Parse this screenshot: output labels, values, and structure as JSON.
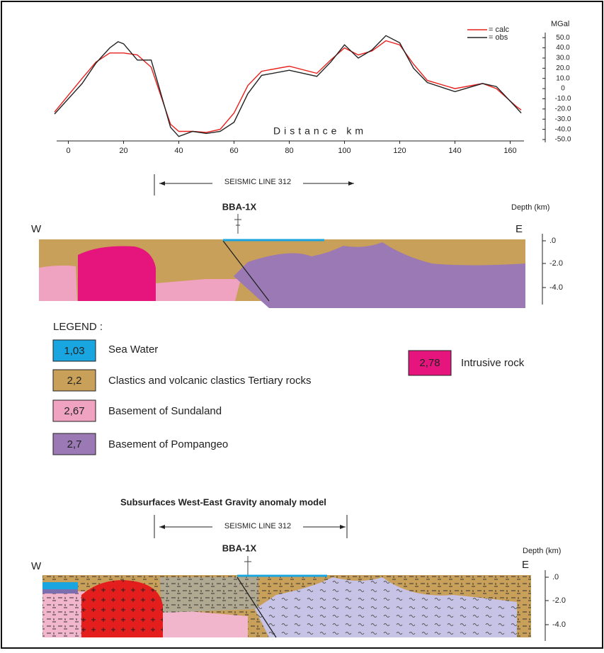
{
  "chart_data": {
    "type": "line",
    "x_label": "Distance km",
    "y_label": "MGal",
    "x": [
      -5,
      5,
      10,
      15,
      18,
      20,
      25,
      30,
      33,
      37,
      40,
      45,
      50,
      55,
      60,
      65,
      70,
      80,
      90,
      95,
      100,
      105,
      110,
      115,
      120,
      125,
      130,
      140,
      150,
      155,
      162,
      164
    ],
    "series": [
      {
        "name": "= calc",
        "color": "#e8201e",
        "values": [
          -23,
          10,
          26,
          35,
          35,
          35,
          33,
          21,
          -3,
          -35,
          -42,
          -42,
          -43,
          -40,
          -24,
          3,
          17,
          22,
          15,
          28,
          40,
          33,
          37,
          47,
          43,
          24,
          8,
          0,
          5,
          0,
          -17,
          -21
        ]
      },
      {
        "name": "= obs",
        "color": "#222222",
        "values": [
          -25,
          5,
          25,
          40,
          46,
          44,
          28,
          28,
          0,
          -38,
          -47,
          -42,
          -44,
          -42,
          -33,
          -5,
          13,
          18,
          12,
          26,
          43,
          30,
          38,
          52,
          45,
          20,
          6,
          -3,
          5,
          2,
          -18,
          -24
        ]
      }
    ],
    "xlim": [
      -5,
      165
    ],
    "xticks": [
      0,
      20,
      40,
      60,
      80,
      100,
      120,
      140,
      160
    ],
    "ylim": [
      -50,
      55
    ],
    "yticks": [
      {
        "value": 50,
        "label": "50.0"
      },
      {
        "value": 40,
        "label": "40.0"
      },
      {
        "value": 30,
        "label": "30.0"
      },
      {
        "value": 20,
        "label": "20.0"
      },
      {
        "value": 10,
        "label": "10.0"
      },
      0,
      {
        "value": -10,
        "label": "-10.0"
      },
      {
        "value": -20,
        "label": "-20.0"
      },
      {
        "value": -30,
        "label": "-30.0"
      },
      {
        "value": -40,
        "label": "-40.0"
      },
      {
        "value": -50,
        "label": "-50.0"
      }
    ],
    "legend": "top-right"
  },
  "section1": {
    "seismic_line": "SEISMIC LINE 312",
    "well": "BBA-1X",
    "depth_label": "Depth  (km)",
    "west": "W",
    "east": "E",
    "depth_ticks": [
      ".0",
      "-2.0",
      "-4.0"
    ]
  },
  "legend": {
    "title": "LEGEND :",
    "items": [
      {
        "density": "1,03",
        "label": "Sea Water"
      },
      {
        "density": "2,2",
        "label": "Clastics and volcanic clastics Tertiary rocks"
      },
      {
        "density": "2,67",
        "label": "Basement of Sundaland"
      },
      {
        "density": "2,7",
        "label": "Basement of Pompangeo"
      },
      {
        "density": "2,78",
        "label": "Intrusive rock"
      }
    ]
  },
  "section2": {
    "title": "Subsurfaces West-East Gravity anomaly model",
    "seismic_line": "SEISMIC LINE 312",
    "well": "BBA-1X",
    "depth_label": "Depth  (km)",
    "west": "W",
    "east": "E",
    "depth_ticks": [
      ".0",
      "-2.0",
      "-4.0"
    ]
  }
}
